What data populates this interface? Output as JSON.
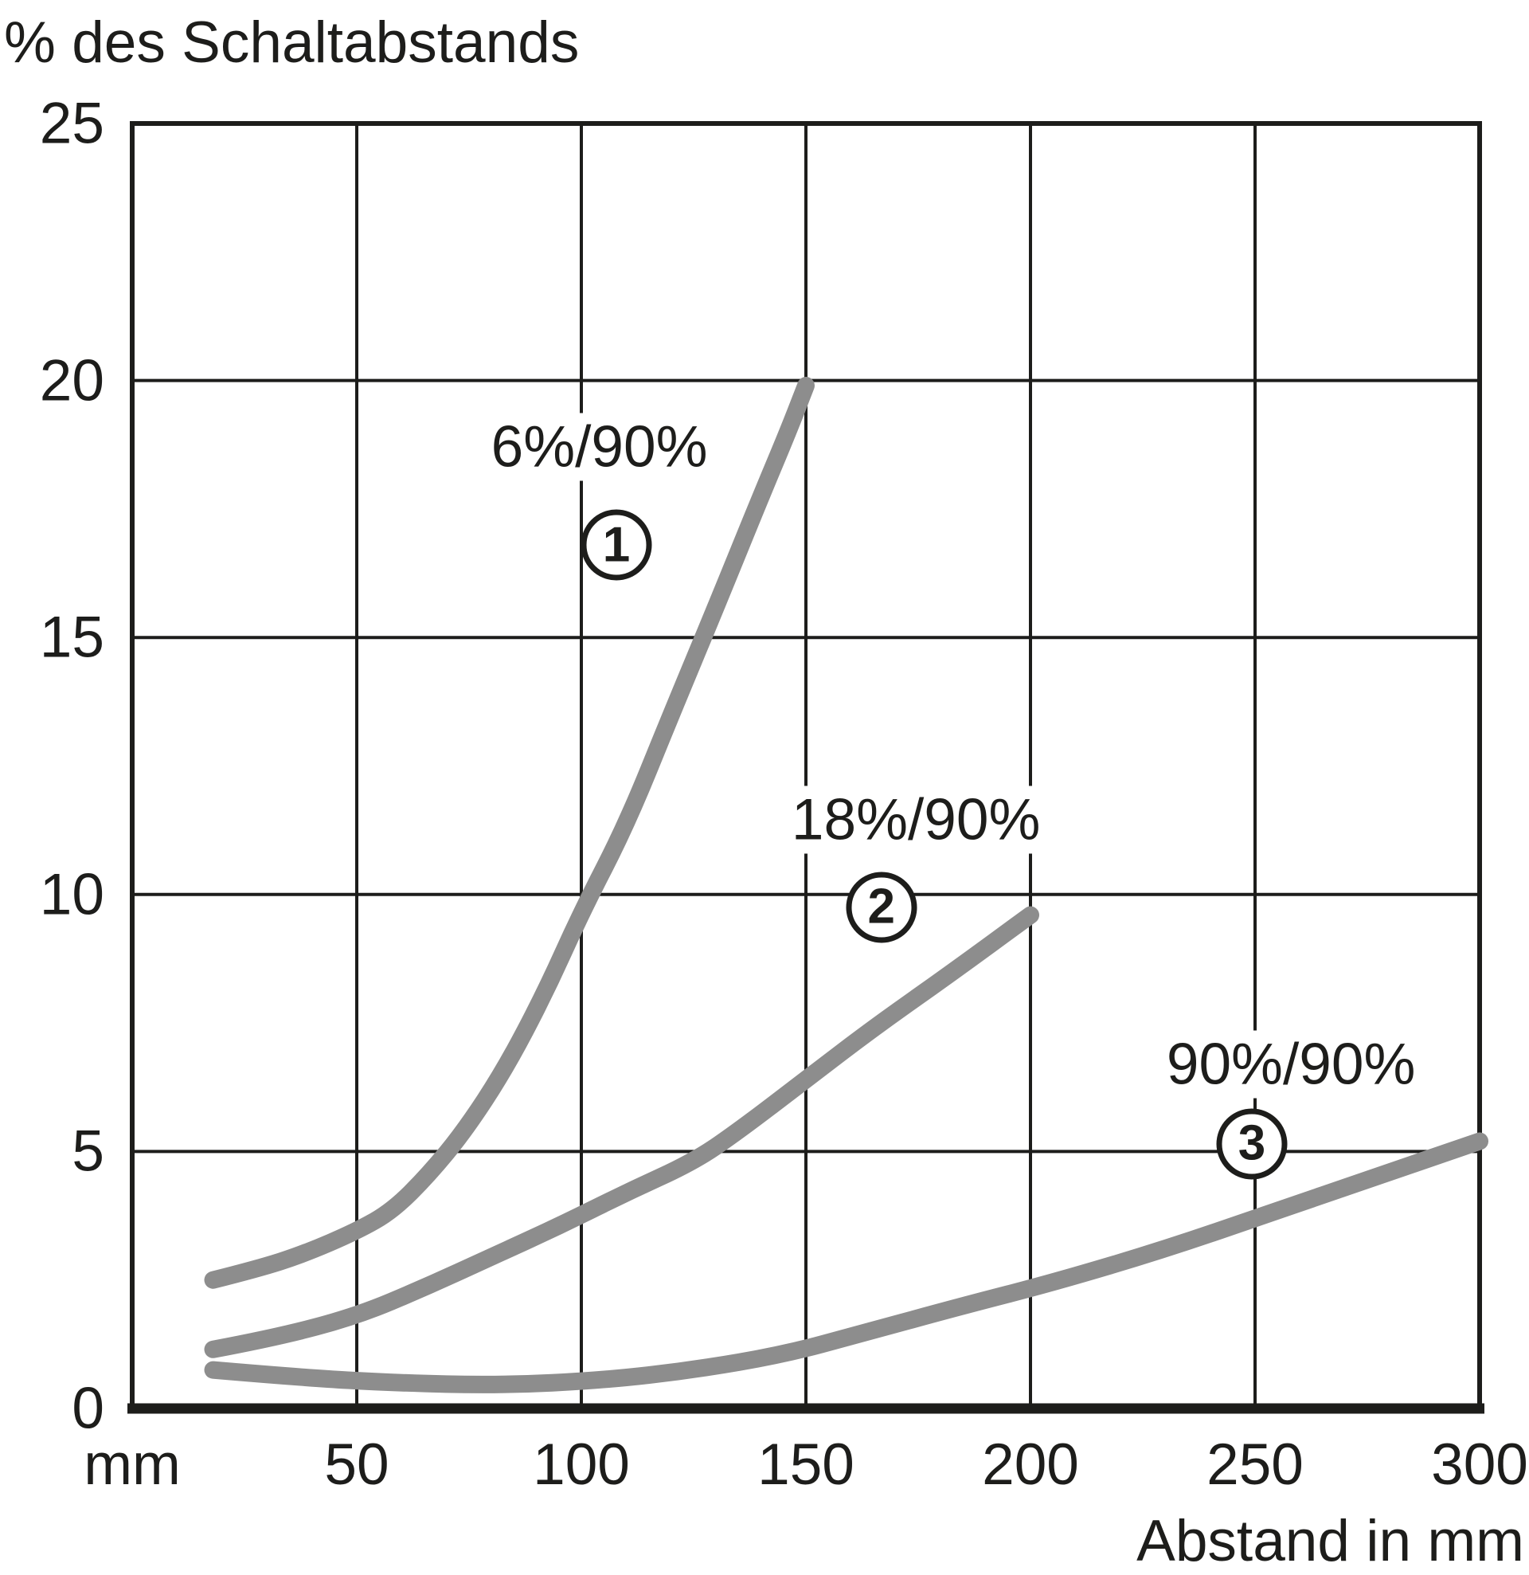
{
  "chart_data": {
    "type": "line",
    "title": "% des Schaltabstands",
    "xlabel": "Abstand in mm",
    "x_unit_label": "mm",
    "xlim": [
      0,
      300
    ],
    "ylim": [
      0,
      25
    ],
    "x_ticks": [
      {
        "label": "mm",
        "mm": 0
      },
      {
        "label": "50",
        "mm": 50
      },
      {
        "label": "100",
        "mm": 100
      },
      {
        "label": "150",
        "mm": 150
      },
      {
        "label": "200",
        "mm": 200
      },
      {
        "label": "250",
        "mm": 250
      },
      {
        "label": "300",
        "mm": 300
      }
    ],
    "y_ticks": [
      0,
      5,
      10,
      15,
      20,
      25
    ],
    "grid": true,
    "legend_position": "inline-annotations",
    "colors": {
      "curve": "#8d8d8d",
      "axis": "#1d1d1b",
      "text": "#1d1d1b",
      "background": "#ffffff"
    },
    "series": [
      {
        "name": "6%/90%",
        "number": "1",
        "points": [
          [
            18,
            2.5
          ],
          [
            28,
            2.72
          ],
          [
            38,
            3.0
          ],
          [
            50,
            3.45
          ],
          [
            58,
            3.85
          ],
          [
            66,
            4.55
          ],
          [
            74,
            5.4
          ],
          [
            83,
            6.6
          ],
          [
            92,
            8.1
          ],
          [
            100,
            9.65
          ],
          [
            110,
            11.35
          ],
          [
            120,
            13.5
          ],
          [
            130,
            15.6
          ],
          [
            140,
            17.75
          ],
          [
            146,
            19.0
          ],
          [
            150,
            19.9
          ]
        ]
      },
      {
        "name": "18%/90%",
        "number": "2",
        "points": [
          [
            18,
            1.15
          ],
          [
            32,
            1.38
          ],
          [
            50,
            1.8
          ],
          [
            65,
            2.35
          ],
          [
            80,
            2.95
          ],
          [
            95,
            3.55
          ],
          [
            110,
            4.2
          ],
          [
            125,
            4.8
          ],
          [
            135,
            5.4
          ],
          [
            150,
            6.4
          ],
          [
            165,
            7.4
          ],
          [
            182,
            8.45
          ],
          [
            200,
            9.6
          ]
        ]
      },
      {
        "name": "90%/90%",
        "number": "3",
        "points": [
          [
            18,
            0.75
          ],
          [
            38,
            0.6
          ],
          [
            58,
            0.5
          ],
          [
            82,
            0.45
          ],
          [
            105,
            0.55
          ],
          [
            125,
            0.75
          ],
          [
            145,
            1.05
          ],
          [
            162,
            1.45
          ],
          [
            185,
            2.0
          ],
          [
            205,
            2.45
          ],
          [
            230,
            3.1
          ],
          [
            255,
            3.85
          ],
          [
            275,
            4.45
          ],
          [
            300,
            5.2
          ]
        ]
      }
    ],
    "annotations": [
      {
        "text": "6%/90%",
        "x_mm": 104.0,
        "y_pct": 18.7
      },
      {
        "text": "18%/90%",
        "x_mm": 174.5,
        "y_pct": 11.45
      },
      {
        "text": "90%/90%",
        "x_mm": 258.0,
        "y_pct": 6.7
      }
    ],
    "number_markers": [
      {
        "text": "1",
        "x_mm": 107.8,
        "y_pct": 16.8
      },
      {
        "text": "2",
        "x_mm": 166.8,
        "y_pct": 9.75
      },
      {
        "text": "3",
        "x_mm": 249.3,
        "y_pct": 5.15
      }
    ]
  }
}
